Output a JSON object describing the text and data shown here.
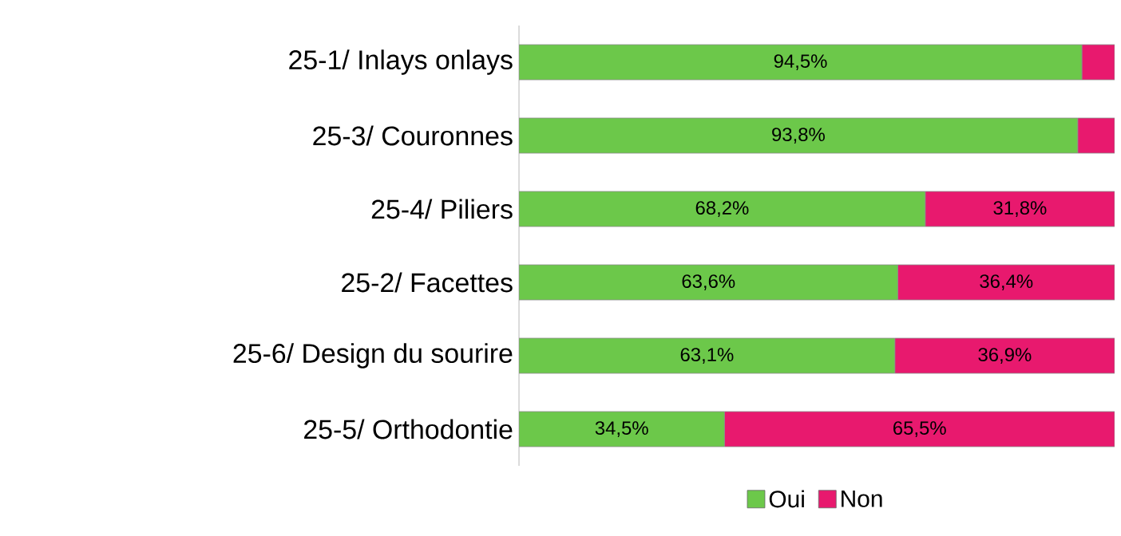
{
  "chart_data": {
    "type": "bar",
    "orientation": "horizontal",
    "stacked": true,
    "categories": [
      "25-1/ Inlays onlays",
      "25-3/ Couronnes",
      "25-4/ Piliers",
      "25-2/ Facettes",
      "25-6/ Design du sourire",
      "25-5/ Orthodontie"
    ],
    "series": [
      {
        "name": "Oui",
        "color": "#6cc84a",
        "values": [
          94.5,
          93.8,
          68.2,
          63.6,
          63.1,
          34.5
        ],
        "value_labels": [
          "94,5%",
          "93,8%",
          "68,2%",
          "63,6%",
          "63,1%",
          "34,5%"
        ]
      },
      {
        "name": "Non",
        "color": "#e8196e",
        "values": [
          5.5,
          6.2,
          31.8,
          36.4,
          36.9,
          65.5
        ],
        "value_labels": [
          null,
          null,
          "31,8%",
          "36,4%",
          "36,9%",
          "65,5%"
        ]
      }
    ],
    "tick_labels": "y",
    "legend": "bottom"
  }
}
